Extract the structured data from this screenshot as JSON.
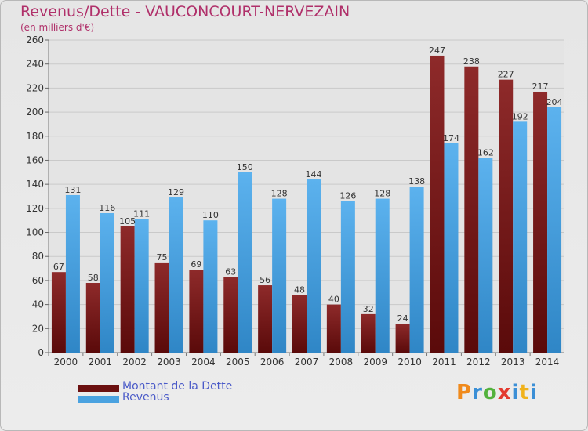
{
  "title": "Revenus/Dette - VAUCONCOURT-NERVEZAIN",
  "subtitle": "(en milliers d'€)",
  "logo": "Proxiti",
  "colors": {
    "dette": "#7a1a1a",
    "revenus": "#4aa2e0",
    "title": "#b0306a"
  },
  "legend": [
    {
      "label": "Montant de la Dette",
      "color": "#6b1010"
    },
    {
      "label": "Revenus",
      "color": "#4aa2e0"
    }
  ],
  "chart_data": {
    "type": "bar",
    "categories": [
      "2000",
      "2001",
      "2002",
      "2003",
      "2004",
      "2005",
      "2006",
      "2007",
      "2008",
      "2009",
      "2010",
      "2011",
      "2012",
      "2013",
      "2014"
    ],
    "series": [
      {
        "name": "Montant de la Dette",
        "values": [
          67,
          58,
          105,
          75,
          69,
          63,
          56,
          48,
          40,
          32,
          24,
          247,
          238,
          227,
          217
        ]
      },
      {
        "name": "Revenus",
        "values": [
          131,
          116,
          111,
          129,
          110,
          150,
          128,
          144,
          126,
          128,
          138,
          174,
          162,
          192,
          204
        ]
      }
    ],
    "ylim": [
      0,
      260
    ],
    "yticks": [
      0,
      20,
      40,
      60,
      80,
      100,
      120,
      140,
      160,
      180,
      200,
      220,
      240,
      260
    ],
    "grid": true,
    "legend_position": "bottom-left"
  }
}
